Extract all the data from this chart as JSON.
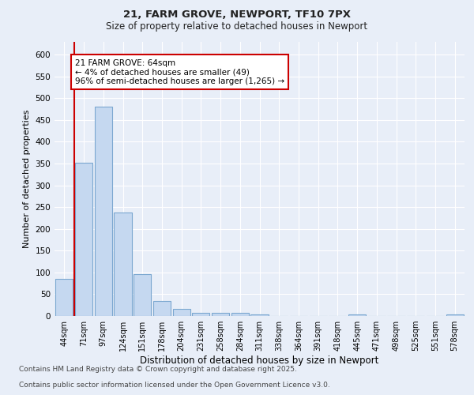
{
  "title1": "21, FARM GROVE, NEWPORT, TF10 7PX",
  "title2": "Size of property relative to detached houses in Newport",
  "xlabel": "Distribution of detached houses by size in Newport",
  "ylabel": "Number of detached properties",
  "categories": [
    "44sqm",
    "71sqm",
    "97sqm",
    "124sqm",
    "151sqm",
    "178sqm",
    "204sqm",
    "231sqm",
    "258sqm",
    "284sqm",
    "311sqm",
    "338sqm",
    "364sqm",
    "391sqm",
    "418sqm",
    "445sqm",
    "471sqm",
    "498sqm",
    "525sqm",
    "551sqm",
    "578sqm"
  ],
  "values": [
    85,
    352,
    480,
    237,
    96,
    35,
    16,
    8,
    7,
    7,
    3,
    0,
    0,
    0,
    0,
    4,
    0,
    0,
    0,
    0,
    4
  ],
  "bar_color": "#c5d8f0",
  "bar_edge_color": "#7ba7d0",
  "marker_label_line1": "21 FARM GROVE: 64sqm",
  "marker_label_line2": "← 4% of detached houses are smaller (49)",
  "marker_label_line3": "96% of semi-detached houses are larger (1,265) →",
  "annotation_box_color": "#cc0000",
  "ylim": [
    0,
    630
  ],
  "yticks": [
    0,
    50,
    100,
    150,
    200,
    250,
    300,
    350,
    400,
    450,
    500,
    550,
    600
  ],
  "background_color": "#e8eef8",
  "grid_color": "#ffffff",
  "footer1": "Contains HM Land Registry data © Crown copyright and database right 2025.",
  "footer2": "Contains public sector information licensed under the Open Government Licence v3.0."
}
